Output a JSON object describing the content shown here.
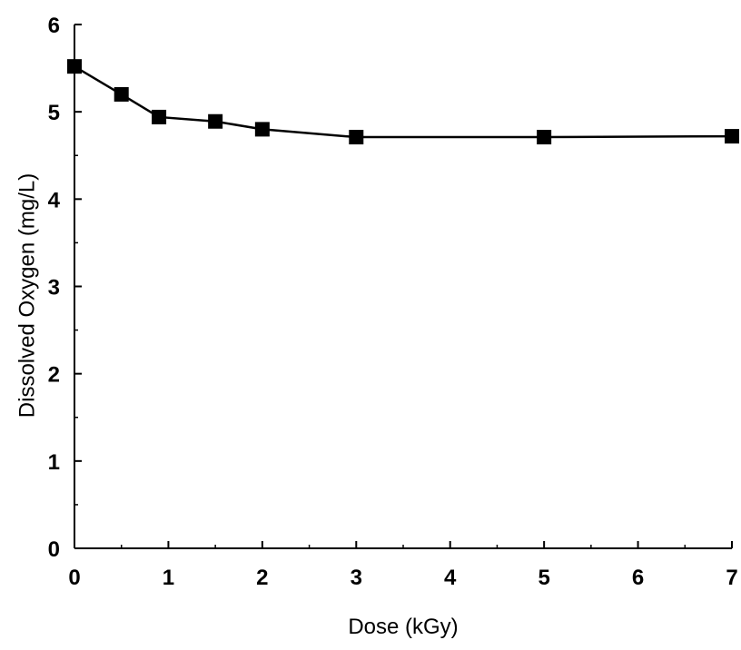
{
  "chart_data": {
    "type": "line",
    "title": "",
    "xlabel": "Dose (kGy)",
    "ylabel": "Dissolved Oxygen (mg/L)",
    "xlim": [
      0,
      7
    ],
    "ylim": [
      0,
      6
    ],
    "xticks": [
      0,
      1,
      2,
      3,
      4,
      5,
      6,
      7
    ],
    "yticks": [
      0,
      1,
      2,
      3,
      4,
      5,
      6
    ],
    "grid": false,
    "legend": "none",
    "marker": "square",
    "line_color": "#000000",
    "series": [
      {
        "x": [
          0,
          0.5,
          0.9,
          1.5,
          2.0,
          3.0,
          5.0,
          7.0
        ],
        "y": [
          5.52,
          5.2,
          4.94,
          4.89,
          4.8,
          4.71,
          4.71,
          4.72
        ]
      }
    ]
  }
}
